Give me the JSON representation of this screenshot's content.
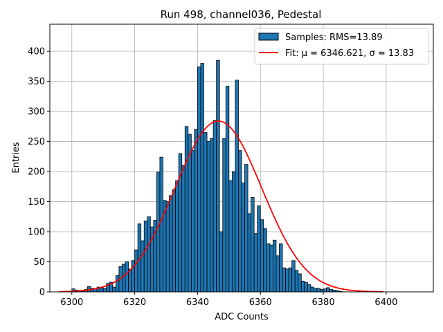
{
  "chart_data": {
    "type": "bar",
    "title": "Run 498, channel036, Pedestal",
    "xlabel": "ADC Counts",
    "ylabel": "Entries",
    "xlim": [
      6293,
      6415
    ],
    "ylim": [
      0,
      445
    ],
    "xticks": [
      6300,
      6320,
      6340,
      6360,
      6380,
      6400
    ],
    "yticks": [
      0,
      50,
      100,
      150,
      200,
      250,
      300,
      350,
      400
    ],
    "grid": true,
    "legend_position": "top-right",
    "bar_color": "#1f77b4",
    "fit_color": "#ff0000",
    "histogram": {
      "name": "Samples: RMS=13.89",
      "bin_width": 1,
      "x": [
        6296,
        6297,
        6298,
        6299,
        6300,
        6301,
        6302,
        6303,
        6304,
        6305,
        6306,
        6307,
        6308,
        6309,
        6310,
        6311,
        6312,
        6313,
        6314,
        6315,
        6316,
        6317,
        6318,
        6319,
        6320,
        6321,
        6322,
        6323,
        6324,
        6325,
        6326,
        6327,
        6328,
        6329,
        6330,
        6331,
        6332,
        6333,
        6334,
        6335,
        6336,
        6337,
        6338,
        6339,
        6340,
        6341,
        6342,
        6343,
        6344,
        6345,
        6346,
        6347,
        6348,
        6349,
        6350,
        6351,
        6352,
        6353,
        6354,
        6355,
        6356,
        6357,
        6358,
        6359,
        6360,
        6361,
        6362,
        6363,
        6364,
        6365,
        6366,
        6367,
        6368,
        6369,
        6370,
        6371,
        6372,
        6373,
        6374,
        6375,
        6376,
        6377,
        6378,
        6379,
        6380,
        6381,
        6382,
        6383,
        6384,
        6385,
        6386,
        6387,
        6388,
        6389,
        6390
      ],
      "values": [
        0,
        0,
        1,
        1,
        5,
        3,
        2,
        3,
        4,
        9,
        6,
        5,
        8,
        7,
        6,
        14,
        16,
        8,
        27,
        42,
        46,
        50,
        38,
        52,
        70,
        113,
        85,
        118,
        125,
        108,
        119,
        199,
        224,
        152,
        150,
        160,
        170,
        185,
        230,
        210,
        275,
        262,
        235,
        270,
        374,
        380,
        265,
        250,
        255,
        285,
        385,
        100,
        255,
        342,
        185,
        200,
        352,
        235,
        181,
        212,
        130,
        157,
        97,
        143,
        120,
        105,
        80,
        78,
        86,
        60,
        80,
        40,
        38,
        40,
        52,
        36,
        30,
        18,
        16,
        12,
        8,
        6,
        6,
        4,
        5,
        7,
        4,
        3,
        2,
        1,
        0,
        0,
        0,
        0,
        0
      ]
    },
    "fit": {
      "name": "Fit: μ = 6346.621, σ = 13.83",
      "mu": 6346.621,
      "sigma": 13.83,
      "amplitude": 284,
      "x_range": [
        6296,
        6399
      ]
    }
  }
}
